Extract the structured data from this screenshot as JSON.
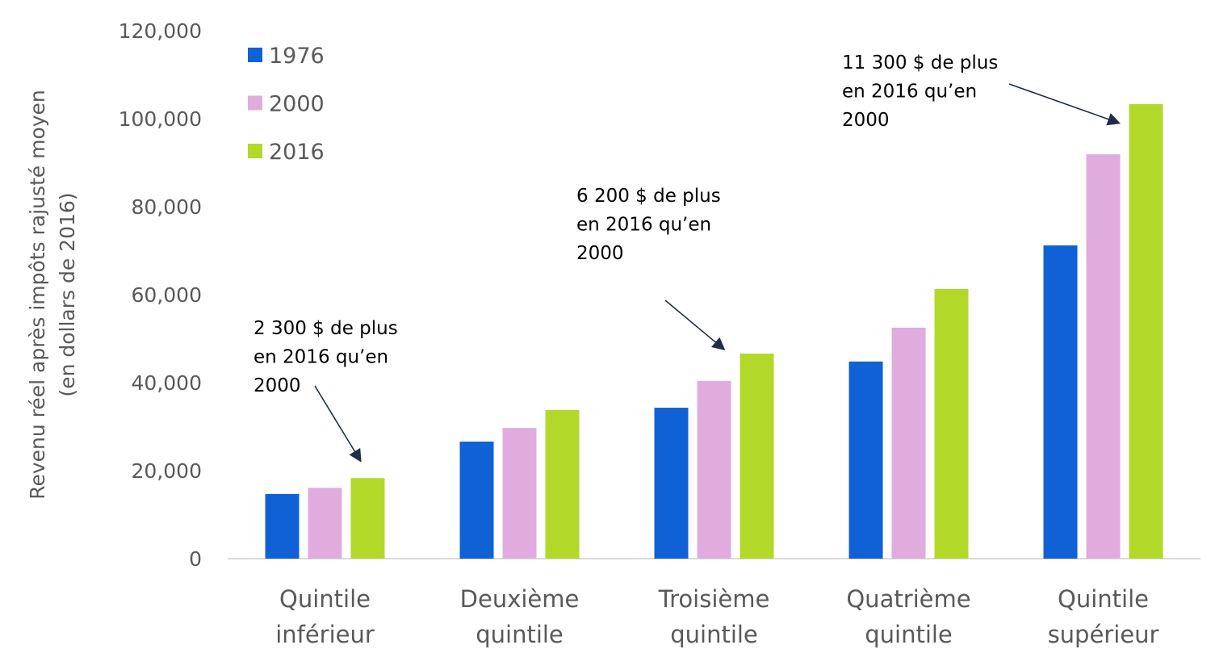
{
  "chart_data": {
    "type": "bar",
    "title": "",
    "xlabel": "",
    "ylabel": [
      "Revenu réel après impôts rajusté moyen",
      "(en dollars de 2016)"
    ],
    "ylim": [
      0,
      120000
    ],
    "yticks": [
      "0",
      "20,000",
      "40,000",
      "60,000",
      "80,000",
      "100,000",
      "120,000"
    ],
    "ytick_values": [
      0,
      20000,
      40000,
      60000,
      80000,
      100000,
      120000
    ],
    "grid": false,
    "legend_position": "top-left",
    "categories": [
      [
        "Quintile",
        "inférieur"
      ],
      [
        "Deuxième",
        "quintile"
      ],
      [
        "Troisième",
        "quintile"
      ],
      [
        "Quatrième",
        "quintile"
      ],
      [
        "Quintile",
        "supérieur"
      ]
    ],
    "series": [
      {
        "name": "1976",
        "color": "#1061d6",
        "values": [
          14700,
          26600,
          34300,
          44800,
          71200
        ]
      },
      {
        "name": "2000",
        "color": "#e0acdd",
        "values": [
          16100,
          29700,
          40400,
          52500,
          91900
        ]
      },
      {
        "name": "2016",
        "color": "#b2d92a",
        "values": [
          18300,
          33800,
          46600,
          61300,
          103300
        ]
      }
    ],
    "annotations": [
      {
        "category_index": 0,
        "lines": [
          "2 300 $ de plus",
          "en 2016 qu’en",
          "2000"
        ]
      },
      {
        "category_index": 2,
        "lines": [
          "6 200 $ de plus",
          "en 2016 qu’en",
          "2000"
        ]
      },
      {
        "category_index": 4,
        "lines": [
          "11 300 $ de plus",
          "en 2016 qu’en",
          "2000"
        ]
      }
    ]
  }
}
